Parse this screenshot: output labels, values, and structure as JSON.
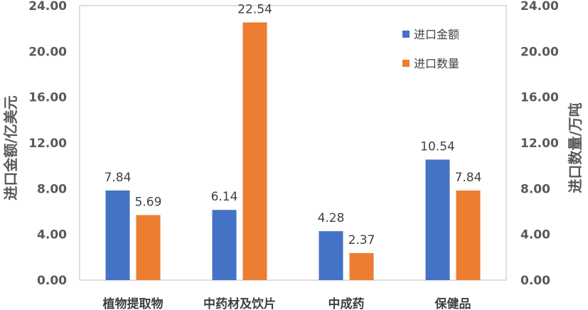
{
  "chart_data": {
    "type": "bar",
    "categories": [
      "植物提取物",
      "中药材及饮片",
      "中成药",
      "保健品"
    ],
    "series": [
      {
        "name": "进口金额",
        "values": [
          7.84,
          6.14,
          4.28,
          10.54
        ],
        "color": "#4472C4",
        "axis": "left"
      },
      {
        "name": "进口数量",
        "values": [
          5.69,
          22.54,
          2.37,
          7.84
        ],
        "color": "#ED7D31",
        "axis": "right"
      }
    ],
    "ylabel": "进口金额/亿美元",
    "y2label": "进口数量/万吨",
    "ylim": [
      0,
      24
    ],
    "y2lim": [
      0,
      24
    ],
    "yticks": [
      "0.00",
      "4.00",
      "8.00",
      "12.00",
      "16.00",
      "20.00",
      "24.00"
    ],
    "y2ticks": [
      "0.00",
      "4.00",
      "8.00",
      "12.00",
      "16.00",
      "20.00",
      "24.00"
    ],
    "grid": false,
    "legend": "top-right",
    "axis_color": "#BFBFBF"
  }
}
